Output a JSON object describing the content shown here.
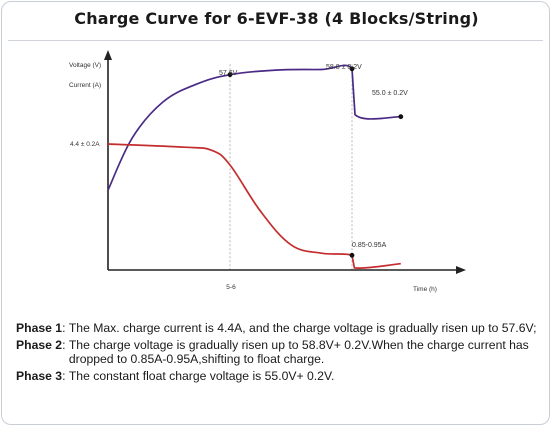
{
  "chart_data": {
    "type": "line",
    "title": "Charge Curve for 6-EVF-38 (4 Blocks/String)",
    "xlabel": "Time (h)",
    "ylabel_voltage": "Voltage (V)",
    "ylabel_current": "Current (A)",
    "x_tick_label": "5-6",
    "grid": false,
    "series": [
      {
        "name": "Voltage (V)",
        "color": "#4a2a86",
        "points": [
          [
            0.0,
            0.38
          ],
          [
            0.8,
            0.63
          ],
          [
            1.8,
            0.8
          ],
          [
            2.9,
            0.885
          ],
          [
            4.0,
            0.93
          ],
          [
            5.5,
            0.952
          ],
          [
            7.0,
            0.955
          ],
          [
            8.0,
            0.958
          ],
          [
            8.1,
            0.74
          ],
          [
            9.6,
            0.73
          ]
        ]
      },
      {
        "name": "Current (A)",
        "color": "#c42d2d",
        "points": [
          [
            0.0,
            0.6
          ],
          [
            2.5,
            0.585
          ],
          [
            3.4,
            0.57
          ],
          [
            4.0,
            0.5
          ],
          [
            5.0,
            0.28
          ],
          [
            6.0,
            0.12
          ],
          [
            7.0,
            0.08
          ],
          [
            8.0,
            0.07
          ],
          [
            8.08,
            0.01
          ],
          [
            9.6,
            0.03
          ]
        ]
      }
    ],
    "annotations": [
      "57.6V",
      "58.8 ± 0.2V",
      "55.0 ± 0.2V",
      "4.4 ± 0.2A",
      "0.85-0.95A"
    ]
  },
  "notes": {
    "phase1_label": "Phase 1",
    "phase1_text": "The Max. charge current is 4.4A, and the charge voltage is gradually risen up to 57.6V;",
    "phase2_label": "Phase 2",
    "phase2_text": "The charge voltage is gradually risen up to 58.8V+ 0.2V.When the charge current has dropped to 0.85A-0.95A,shifting to float charge.",
    "phase3_label": "Phase 3",
    "phase3_text": "The constant float charge voltage is 55.0V+ 0.2V.",
    "separator": ": "
  },
  "colors": {
    "voltage": "#4a2a86",
    "current": "#c42d2d",
    "axis": "#222222",
    "guide": "#b8b8b8"
  }
}
